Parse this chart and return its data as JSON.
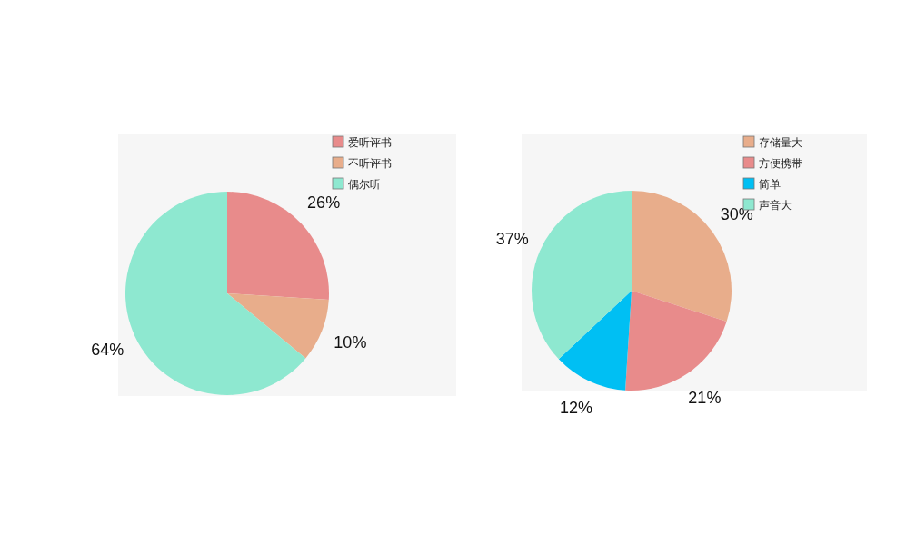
{
  "chart_data": [
    {
      "type": "pie",
      "categories": [
        "爱听评书",
        "不听评书",
        "偶尔听"
      ],
      "values": [
        26,
        10,
        64
      ],
      "value_labels": [
        "26%",
        "10%",
        "64%"
      ],
      "colors": [
        "#e88b8b",
        "#e8ad8b",
        "#8ee8d0"
      ],
      "legend": "top right"
    },
    {
      "type": "pie",
      "categories": [
        "存储量大",
        "方便携带",
        "简单",
        "声音大"
      ],
      "values": [
        30,
        21,
        12,
        37
      ],
      "value_labels": [
        "30%",
        "21%",
        "12%",
        "37%"
      ],
      "colors": [
        "#e8ad8b",
        "#e88b8b",
        "#00bff3",
        "#8ee8d0"
      ],
      "legend": "top right"
    }
  ]
}
